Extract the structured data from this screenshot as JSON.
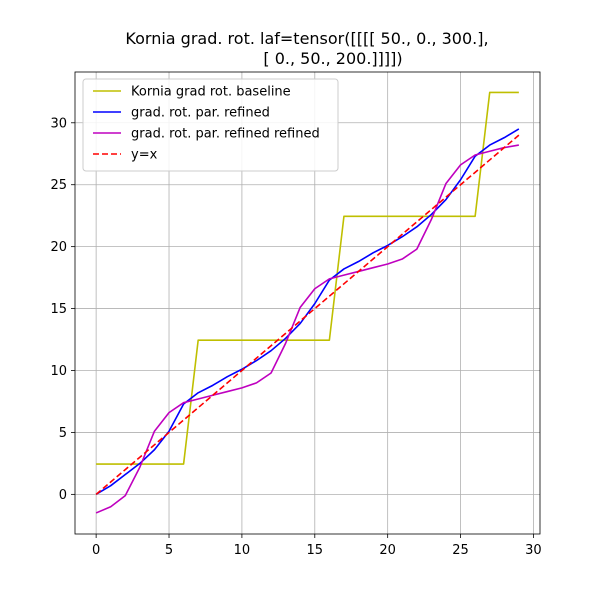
{
  "chart_data": {
    "type": "line",
    "title_lines": [
      "Kornia grad. rot. laf=tensor([[[[ 50.,   0., 300.],",
      "[  0.,  50., 200.]]]])"
    ],
    "xlabel": "",
    "ylabel": "",
    "xlim": [
      -1.45,
      30.45
    ],
    "ylim": [
      -3.2,
      34.1
    ],
    "xticks": [
      0,
      5,
      10,
      15,
      20,
      25,
      30
    ],
    "yticks": [
      0,
      5,
      10,
      15,
      20,
      25,
      30
    ],
    "grid": true,
    "legend_position": "upper-left",
    "x": [
      0,
      1,
      2,
      3,
      4,
      5,
      6,
      7,
      8,
      9,
      10,
      11,
      12,
      13,
      14,
      15,
      16,
      17,
      18,
      19,
      20,
      21,
      22,
      23,
      24,
      25,
      26,
      27,
      28,
      29
    ],
    "series": [
      {
        "name": "Kornia grad rot. baseline",
        "color": "#bfbf00",
        "dash": "solid",
        "x": [
          0,
          6,
          7,
          16,
          17,
          26,
          27,
          29
        ],
        "values": [
          2.45,
          2.45,
          12.45,
          12.45,
          22.45,
          22.45,
          32.45,
          32.45
        ]
      },
      {
        "name": "grad. rot. par. refined",
        "color": "#0000ff",
        "dash": "solid",
        "values": [
          0.0,
          0.7,
          1.6,
          2.5,
          3.6,
          5.1,
          7.3,
          8.2,
          8.8,
          9.5,
          10.1,
          10.8,
          11.6,
          12.6,
          13.8,
          15.4,
          17.3,
          18.2,
          18.8,
          19.5,
          20.1,
          20.8,
          21.6,
          22.6,
          23.8,
          25.4,
          27.3,
          28.2,
          28.8,
          29.5
        ]
      },
      {
        "name": "grad. rot. par. refined refined",
        "color": "#bf00bf",
        "dash": "solid",
        "values": [
          -1.5,
          -1.0,
          -0.1,
          2.2,
          5.1,
          6.6,
          7.4,
          7.7,
          8.0,
          8.3,
          8.6,
          9.0,
          9.8,
          12.2,
          15.1,
          16.6,
          17.4,
          17.7,
          18.0,
          18.3,
          18.6,
          19.0,
          19.8,
          22.2,
          25.1,
          26.6,
          27.4,
          27.7,
          28.0,
          28.2
        ]
      },
      {
        "name": "y=x",
        "color": "#ff0000",
        "dash": "dashed",
        "values": [
          0,
          1,
          2,
          3,
          4,
          5,
          6,
          7,
          8,
          9,
          10,
          11,
          12,
          13,
          14,
          15,
          16,
          17,
          18,
          19,
          20,
          21,
          22,
          23,
          24,
          25,
          26,
          27,
          28,
          29
        ]
      }
    ]
  }
}
